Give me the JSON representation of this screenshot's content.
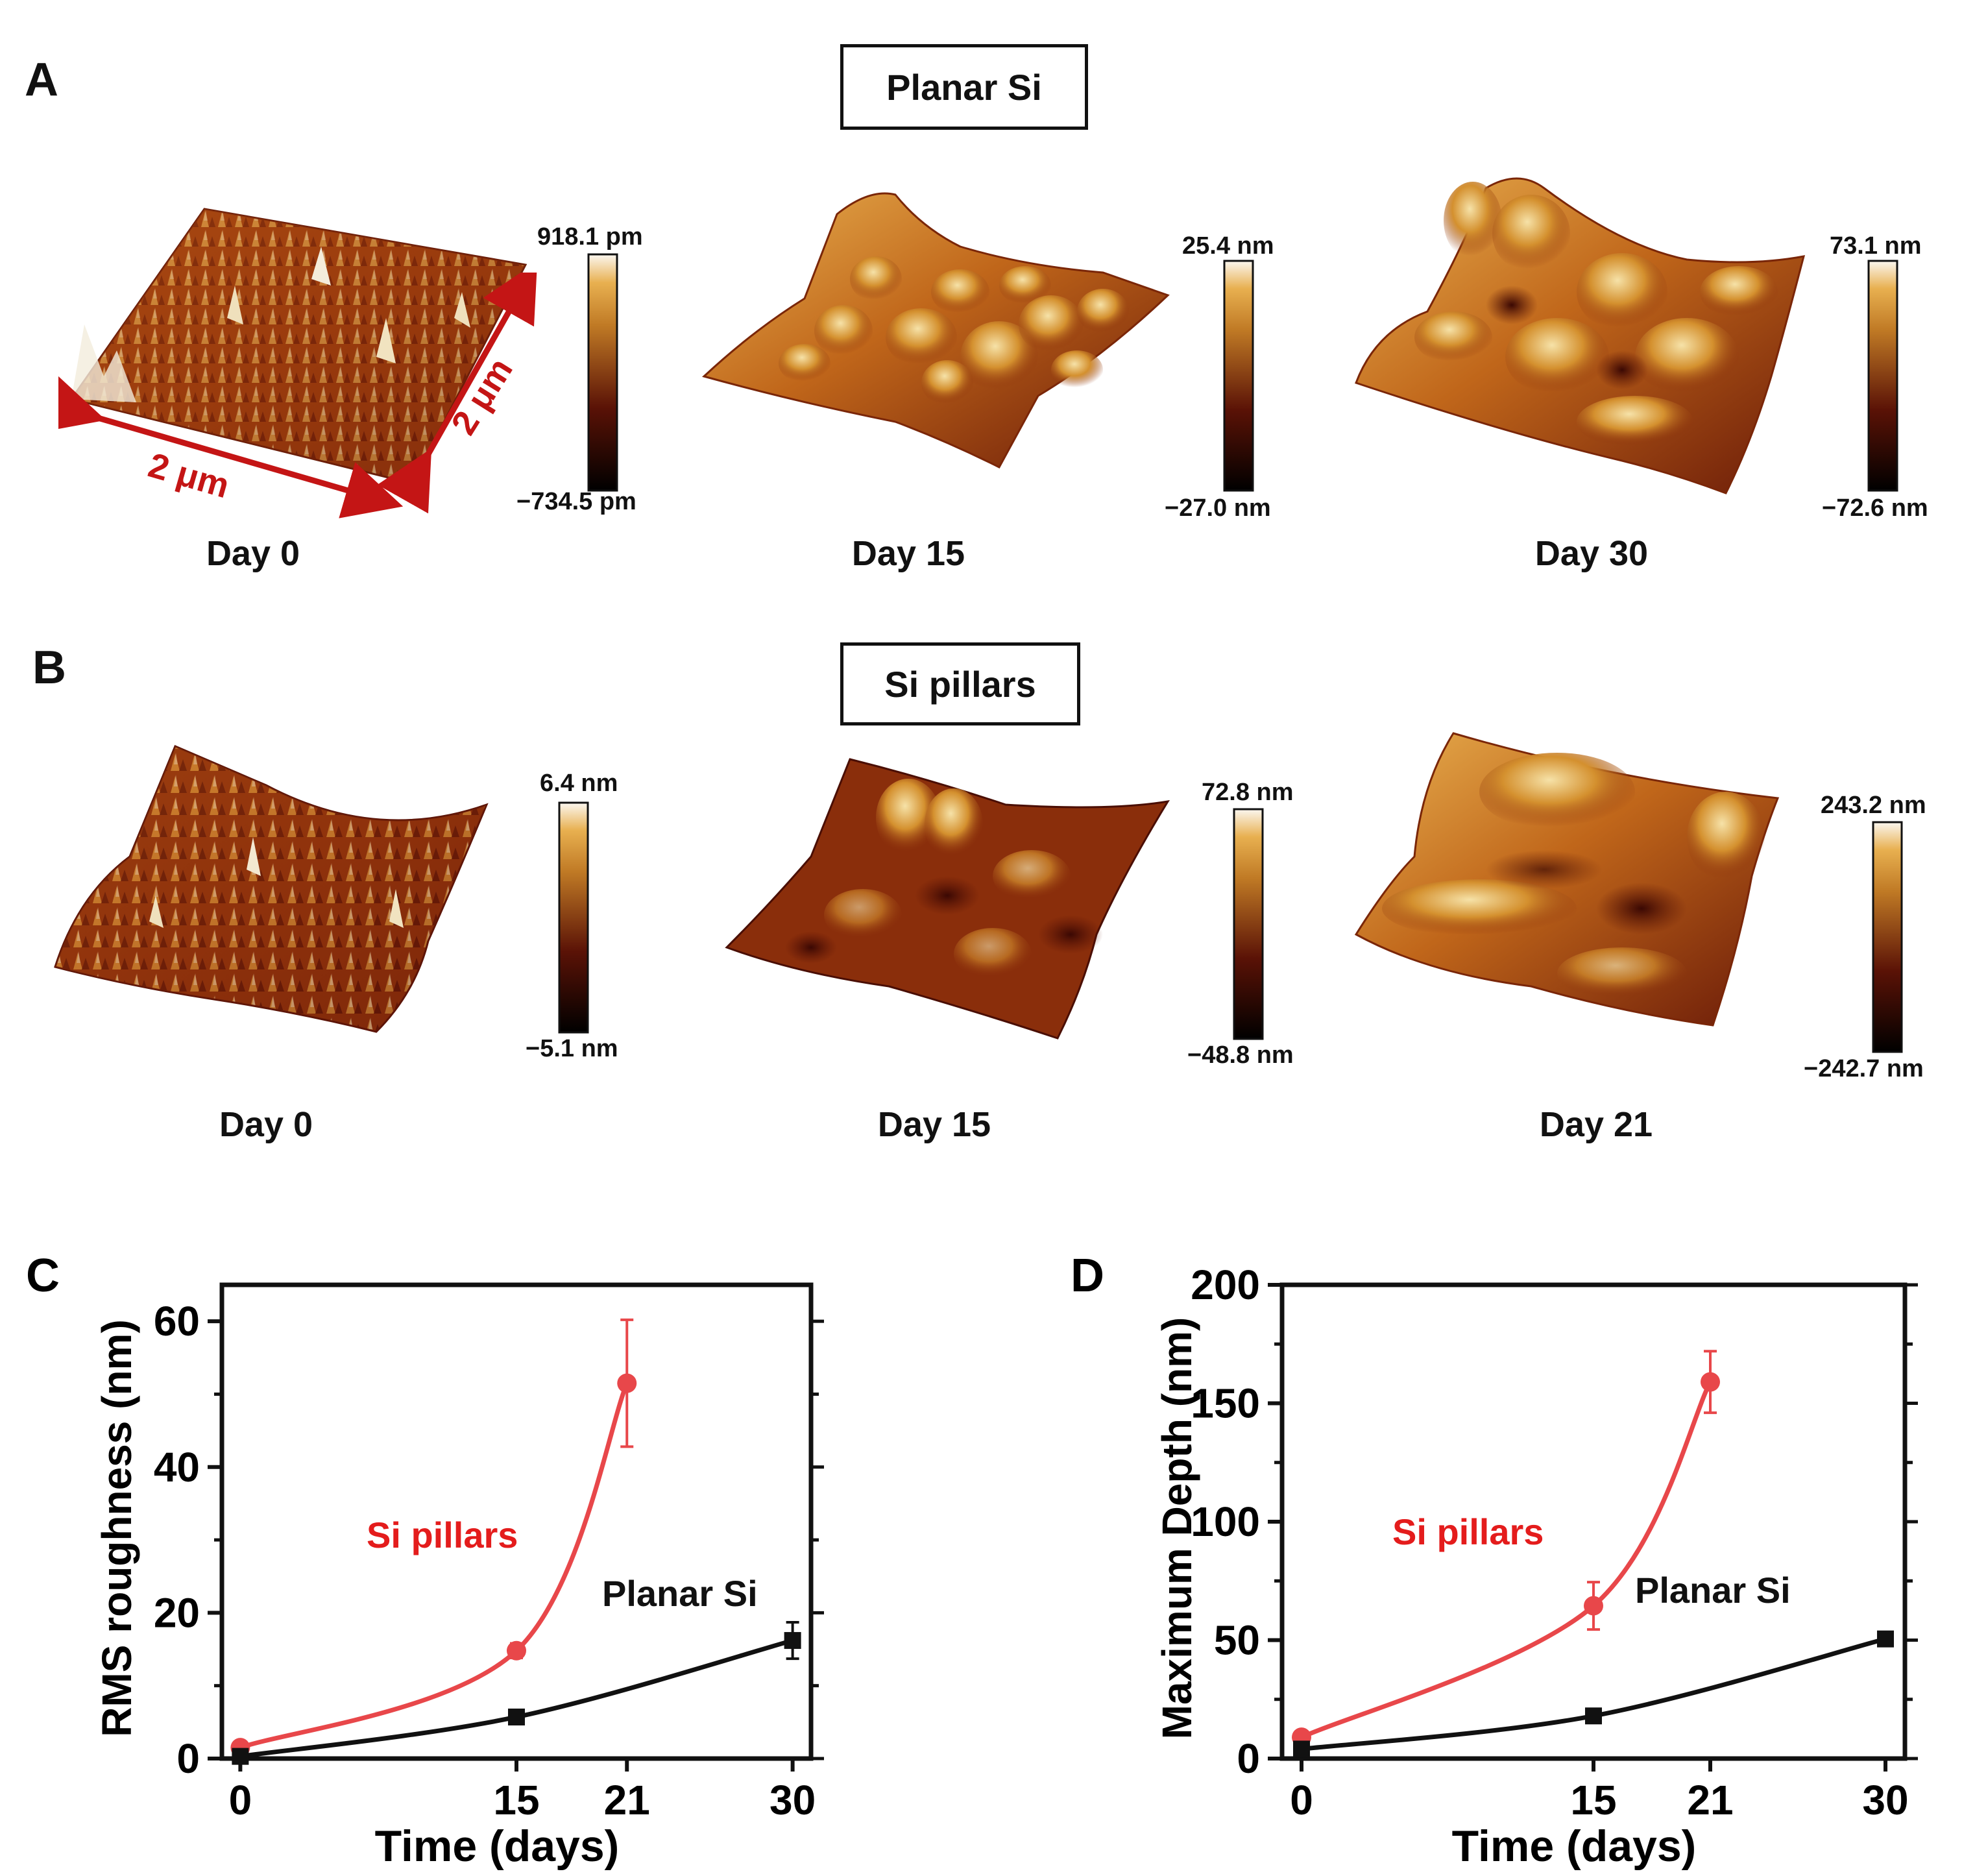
{
  "panelA": {
    "letter": "A",
    "title": "Planar Si",
    "scale_labels": {
      "x": "2 μm",
      "y": "2 μm"
    },
    "images": [
      {
        "day": "Day 0",
        "cb_max": "918.1 pm",
        "cb_min": "−734.5 pm"
      },
      {
        "day": "Day 15",
        "cb_max": "25.4 nm",
        "cb_min": "−27.0 nm"
      },
      {
        "day": "Day 30",
        "cb_max": "73.1 nm",
        "cb_min": "−72.6 nm"
      }
    ]
  },
  "panelB": {
    "letter": "B",
    "title": "Si pillars",
    "images": [
      {
        "day": "Day 0",
        "cb_max": "6.4 nm",
        "cb_min": "−5.1 nm"
      },
      {
        "day": "Day 15",
        "cb_max": "72.8 nm",
        "cb_min": "−48.8 nm"
      },
      {
        "day": "Day 21",
        "cb_max": "243.2 nm",
        "cb_min": "−242.7 nm"
      }
    ]
  },
  "colors": {
    "pillars": "#e8474a",
    "planar": "#111111",
    "arrow": "#c41515",
    "afm_dark": "#5a1206",
    "afm_mid": "#a0400e",
    "afm_light": "#e8b050",
    "afm_peak": "#f6eee0"
  },
  "chart_data": [
    {
      "panel": "C",
      "type": "line",
      "xlabel": "Time (days)",
      "ylabel": "RMS roughness (nm)",
      "xlim": [
        -1,
        31
      ],
      "ylim": [
        0,
        65
      ],
      "xticks": [
        0,
        15,
        21,
        30
      ],
      "yticks": [
        0,
        20,
        40,
        60
      ],
      "series": [
        {
          "name": "Si pillars",
          "color": "#e8474a",
          "x": [
            0,
            15,
            21
          ],
          "y": [
            1.5,
            14.8,
            51.5
          ],
          "err": [
            0.3,
            1.0,
            8.7
          ]
        },
        {
          "name": "Planar Si",
          "color": "#111111",
          "x": [
            0,
            15,
            30
          ],
          "y": [
            0.3,
            5.7,
            16.2
          ],
          "err": [
            0.1,
            0.8,
            2.5
          ]
        }
      ]
    },
    {
      "panel": "D",
      "type": "line",
      "xlabel": "Time (days)",
      "ylabel": "Maximum Depth (nm)",
      "xlim": [
        -1,
        31
      ],
      "ylim": [
        0,
        200
      ],
      "xticks": [
        0,
        15,
        21,
        30
      ],
      "yticks": [
        0,
        50,
        100,
        150,
        200
      ],
      "series": [
        {
          "name": "Si pillars",
          "color": "#e8474a",
          "x": [
            0,
            15,
            21
          ],
          "y": [
            9,
            64.5,
            159
          ],
          "err": [
            1.5,
            10,
            13
          ]
        },
        {
          "name": "Planar Si",
          "color": "#111111",
          "x": [
            0,
            15,
            30
          ],
          "y": [
            4,
            18,
            50.5
          ],
          "err": [
            0.8,
            2,
            2
          ]
        }
      ]
    }
  ]
}
